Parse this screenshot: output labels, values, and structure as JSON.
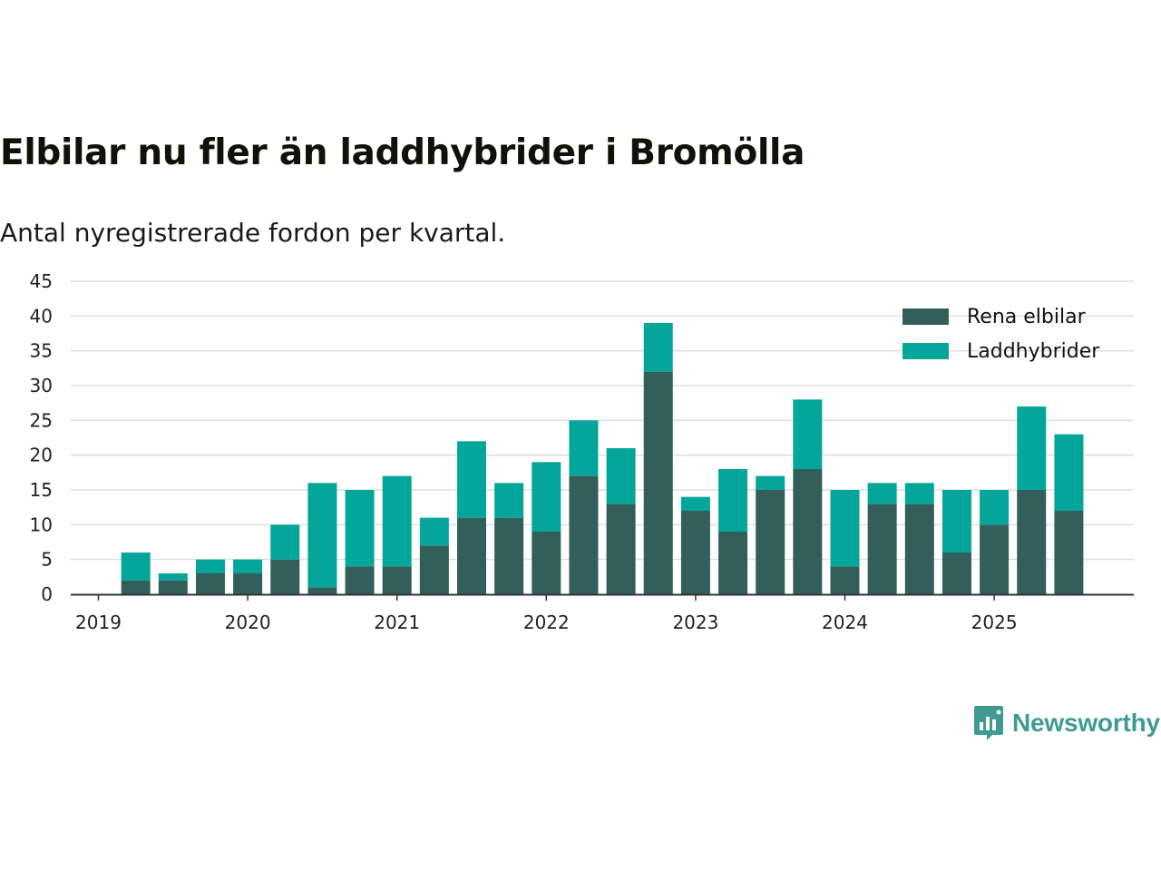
{
  "title": "Elbilar nu fler än laddhybrider i Bromölla",
  "subtitle": "Antal nyregistrerade fordon per kvartal.",
  "brand": {
    "name": "Newsworthy",
    "icon": "newsworthy-logo-icon",
    "color": "#3f9b91"
  },
  "colors": {
    "elbilar": "#325f5a",
    "laddhybrider": "#04a59a",
    "grid": "#dddddd",
    "axis": "#333333"
  },
  "chart_data": {
    "type": "bar",
    "stacked": true,
    "title": "Elbilar nu fler än laddhybrider i Bromölla",
    "subtitle": "Antal nyregistrerade fordon per kvartal.",
    "xlabel": "",
    "ylabel": "",
    "ylim": [
      0,
      45
    ],
    "yticks": [
      0,
      5,
      10,
      15,
      20,
      25,
      30,
      35,
      40,
      45
    ],
    "xticks": [
      "2019",
      "2020",
      "2021",
      "2022",
      "2023",
      "2024",
      "2025"
    ],
    "grid": true,
    "legend_position": "top-right",
    "categories": [
      "2019 Q1",
      "2019 Q2",
      "2019 Q3",
      "2019 Q4",
      "2020 Q1",
      "2020 Q2",
      "2020 Q3",
      "2020 Q4",
      "2021 Q1",
      "2021 Q2",
      "2021 Q3",
      "2021 Q4",
      "2022 Q1",
      "2022 Q2",
      "2022 Q3",
      "2022 Q4",
      "2023 Q1",
      "2023 Q2",
      "2023 Q3",
      "2023 Q4",
      "2024 Q1",
      "2024 Q2",
      "2024 Q3",
      "2024 Q4",
      "2025 Q1",
      "2025 Q2",
      "2025 Q3"
    ],
    "series": [
      {
        "name": "Rena elbilar",
        "values": [
          0,
          2,
          2,
          3,
          3,
          5,
          1,
          4,
          4,
          7,
          11,
          11,
          9,
          17,
          13,
          32,
          12,
          9,
          15,
          18,
          4,
          13,
          13,
          6,
          10,
          15,
          12
        ]
      },
      {
        "name": "Laddhybrider",
        "values": [
          0,
          4,
          1,
          2,
          2,
          5,
          15,
          11,
          13,
          4,
          11,
          5,
          10,
          8,
          8,
          7,
          2,
          9,
          2,
          10,
          11,
          3,
          3,
          9,
          5,
          12,
          11
        ]
      }
    ]
  }
}
